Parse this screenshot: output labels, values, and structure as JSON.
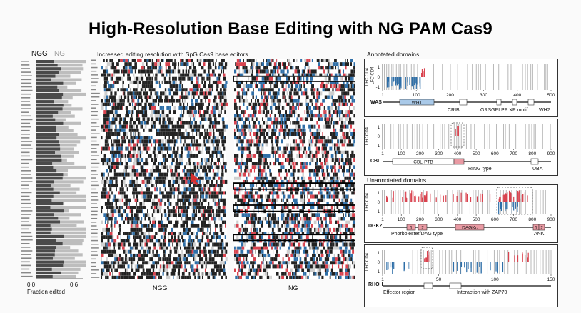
{
  "slide": {
    "title": "High-Resolution Base Editing with NG PAM Cas9"
  },
  "left_panel": {
    "legend_ngg": "NGG",
    "legend_ng": "NG",
    "xlabel": "Fraction edited",
    "x_ticks": [
      "0.0",
      "0.6"
    ],
    "colors": {
      "ngg": "#4a4a4a",
      "ng": "#bdbdbd"
    }
  },
  "heatmap": {
    "title": "Increased editing resolution with SpG Cas9 base editors",
    "label_ngg": "NGG",
    "label_ng": "NG",
    "colors": {
      "blue": "#2f6fa8",
      "red": "#d9434f",
      "dark": "#222222",
      "grey": "#cfcfcf"
    }
  },
  "tracks": {
    "annotated_header": "Annotated domains",
    "unannotated_header": "Unannotated domains",
    "ylabel": "LFC CD4",
    "y_ticks": [
      "1",
      "0",
      "-1"
    ],
    "was": {
      "gene": "WAS",
      "x_ticks": [
        "1",
        "100",
        "200",
        "300",
        "400",
        "500"
      ],
      "domains": [
        "WH1",
        "CRIB",
        "GRSGPLPP XP motif",
        "WH2"
      ]
    },
    "cbl": {
      "gene": "CBL",
      "x_ticks": [
        "1",
        "100",
        "200",
        "300",
        "400",
        "500",
        "600",
        "700",
        "800",
        "900"
      ],
      "domains": [
        "CBL-PTB",
        "RING type",
        "UBA"
      ]
    },
    "dgkz": {
      "gene": "DGKZ",
      "x_ticks": [
        "1",
        "100",
        "200",
        "300",
        "400",
        "500",
        "600",
        "700",
        "800",
        "900"
      ],
      "domains": [
        "1",
        "2",
        "DAGKc",
        "1",
        "2",
        "Phorbolester/DAG type",
        "ANK"
      ]
    },
    "rhoh": {
      "gene": "RHOH",
      "x_ticks": [
        "1",
        "50",
        "100",
        "150"
      ],
      "domains": [
        "Effector region",
        "Interaction with ZAP70"
      ]
    }
  }
}
